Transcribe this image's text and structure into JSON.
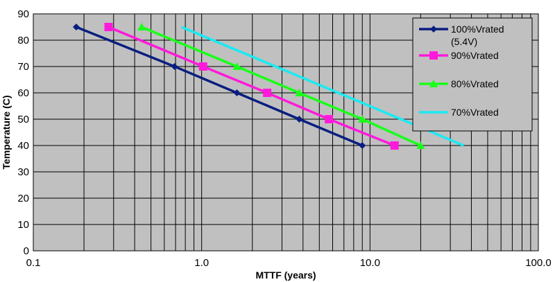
{
  "chart_data": {
    "type": "line",
    "title": "",
    "xlabel": "MTTF (years)",
    "ylabel": "Temperature (C)",
    "xscale": "log",
    "xlim": [
      0.1,
      100.0
    ],
    "ylim": [
      0,
      90
    ],
    "x_ticks": [
      "0.1",
      "1.0",
      "10.0",
      "100.0"
    ],
    "y_ticks": [
      "0",
      "10",
      "20",
      "30",
      "40",
      "50",
      "60",
      "70",
      "80",
      "90"
    ],
    "grid": true,
    "legend_position": "top-right",
    "plot_background": "#c0c0c0",
    "series": [
      {
        "name_lines": [
          "100%Vrated",
          "(5.4V)"
        ],
        "color": "#0a1e80",
        "marker": "diamond",
        "points": [
          {
            "x": 0.18,
            "y": 85
          },
          {
            "x": 0.69,
            "y": 70
          },
          {
            "x": 1.62,
            "y": 60
          },
          {
            "x": 3.8,
            "y": 50
          },
          {
            "x": 9.0,
            "y": 40
          }
        ]
      },
      {
        "name_lines": [
          "90%Vrated"
        ],
        "color": "#ff1adb",
        "marker": "square",
        "points": [
          {
            "x": 0.28,
            "y": 85
          },
          {
            "x": 1.02,
            "y": 70
          },
          {
            "x": 2.45,
            "y": 60
          },
          {
            "x": 5.7,
            "y": 50
          },
          {
            "x": 14.0,
            "y": 40
          }
        ]
      },
      {
        "name_lines": [
          "80%Vrated"
        ],
        "color": "#19ff19",
        "marker": "triangle",
        "points": [
          {
            "x": 0.44,
            "y": 85
          },
          {
            "x": 1.62,
            "y": 70
          },
          {
            "x": 3.8,
            "y": 60
          },
          {
            "x": 9.0,
            "y": 50
          },
          {
            "x": 20.0,
            "y": 40
          }
        ]
      },
      {
        "name_lines": [
          "70%Vrated"
        ],
        "color": "#1aeaf2",
        "marker": "none",
        "points": [
          {
            "x": 0.76,
            "y": 85
          },
          {
            "x": 36.0,
            "y": 40
          }
        ]
      }
    ]
  }
}
